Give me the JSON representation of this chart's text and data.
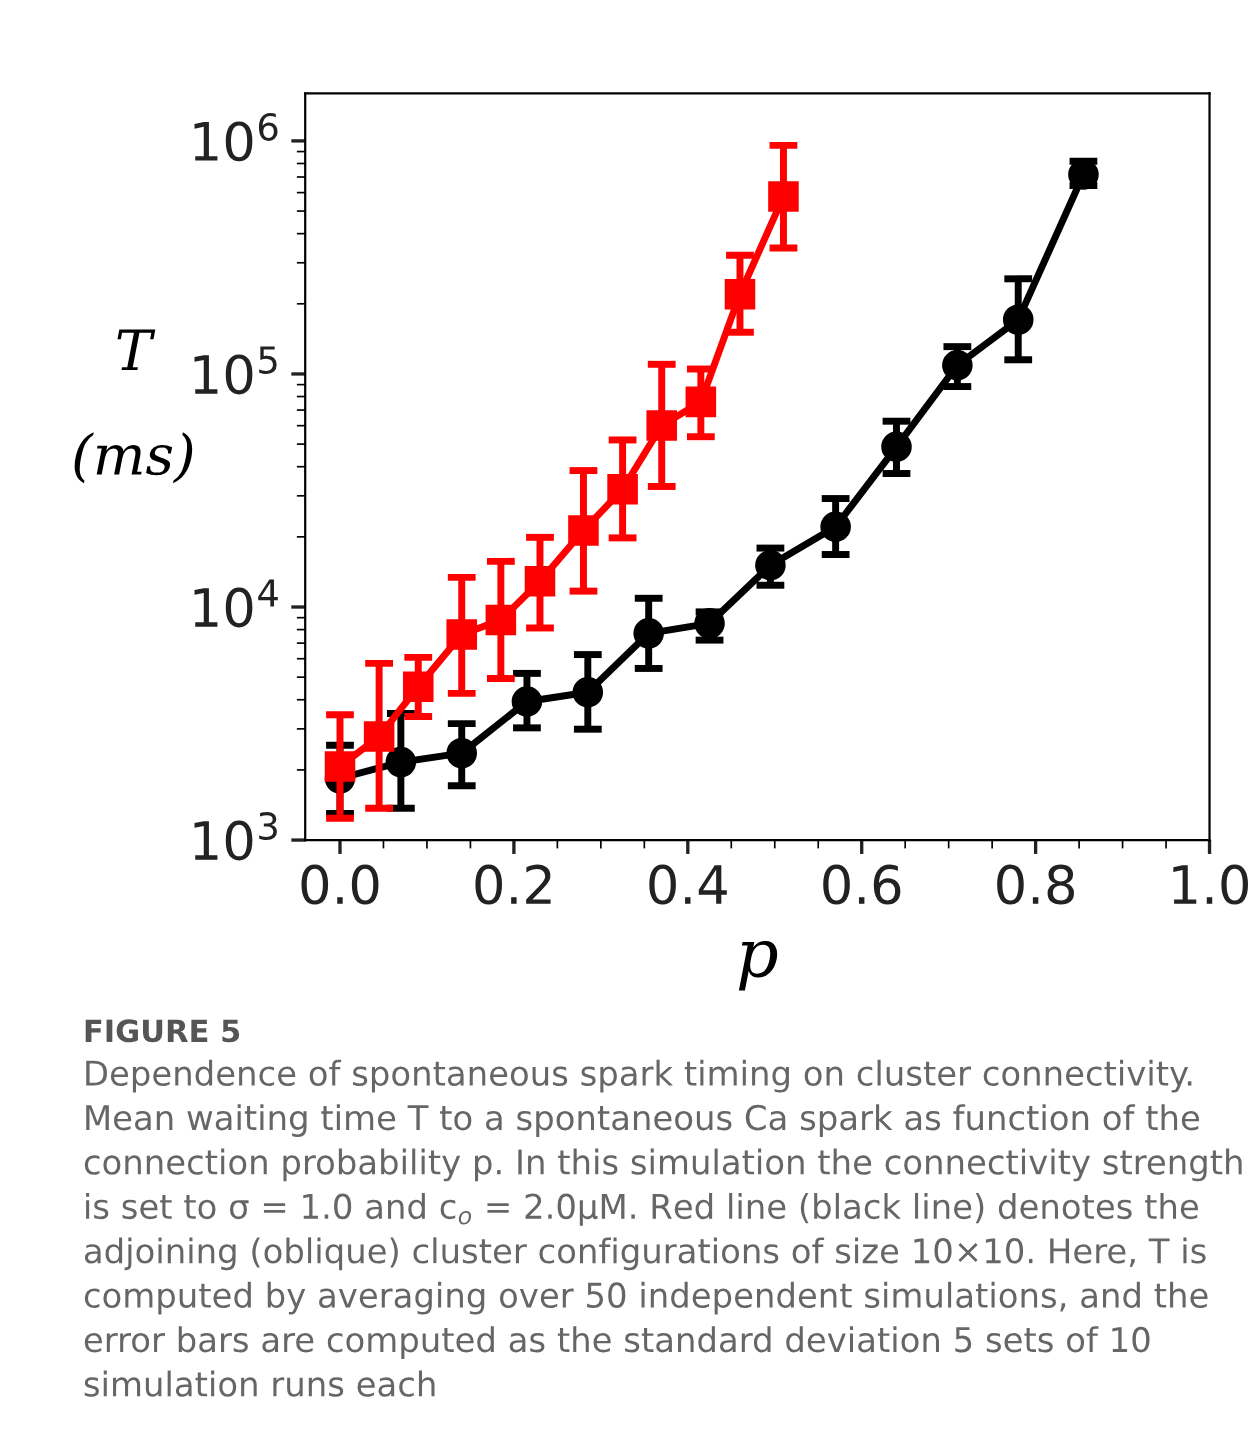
{
  "chart_data": {
    "type": "line",
    "xlabel": "p",
    "ylabel": "T\n(ms)",
    "xlim": [
      -0.04,
      1.0
    ],
    "xticks": [
      {
        "value": 0.0,
        "label": "0.0"
      },
      {
        "value": 0.2,
        "label": "0.2"
      },
      {
        "value": 0.4,
        "label": "0.4"
      },
      {
        "value": 0.6,
        "label": "0.6"
      },
      {
        "value": 0.8,
        "label": "0.8"
      },
      {
        "value": 1.0,
        "label": "1.0"
      }
    ],
    "ylim": [
      1000,
      1600000
    ],
    "log": "y",
    "yticks": [
      {
        "value": 1000,
        "label": "10$^{3}$"
      },
      {
        "value": 10000,
        "label": "10$^{4}$"
      },
      {
        "value": 100000,
        "label": "10$^{5}$"
      },
      {
        "value": 1000000,
        "label": "10$^{6}$"
      }
    ],
    "grid": false,
    "legend": false,
    "line_style": "solid",
    "series": [
      {
        "color": "#ff0000",
        "marker": "square",
        "x": [
          0,
          0.045,
          0.09,
          0.14,
          0.185,
          0.23,
          0.28,
          0.325,
          0.37,
          0.415,
          0.46,
          0.51
        ],
        "values": [
          2070,
          2780,
          4550,
          7620,
          8790,
          12900,
          21300,
          32000,
          60100,
          75900,
          220000,
          577000
        ],
        "errors": [
          [
            1240,
            3450
          ],
          [
            1370,
            5730
          ],
          [
            3390,
            6080
          ],
          [
            4260,
            13400
          ],
          [
            4930,
            15700
          ],
          [
            8130,
            19900
          ],
          [
            11700,
            38500
          ],
          [
            19800,
            52100
          ],
          [
            32900,
            110000
          ],
          [
            53800,
            105000
          ],
          [
            151000,
            323000
          ],
          [
            347000,
            957000
          ]
        ]
      },
      {
        "color": "#000000",
        "marker": "circle",
        "x": [
          0,
          0.07,
          0.14,
          0.215,
          0.285,
          0.355,
          0.425,
          0.495,
          0.57,
          0.64,
          0.71,
          0.78,
          0.855
        ],
        "values": [
          1840,
          2160,
          2360,
          3930,
          4310,
          7710,
          8510,
          15100,
          22100,
          48700,
          109000,
          171000,
          718000
        ],
        "errors": [
          [
            1300,
            2550
          ],
          [
            1370,
            3490
          ],
          [
            1710,
            3160
          ],
          [
            3030,
            5190
          ],
          [
            2990,
            6250
          ],
          [
            5450,
            10900
          ],
          [
            7210,
            9530
          ],
          [
            12400,
            17900
          ],
          [
            16800,
            29200
          ],
          [
            37400,
            62700
          ],
          [
            88300,
            131000
          ],
          [
            115000,
            256000
          ],
          [
            644000,
            818000
          ]
        ]
      }
    ],
    "annotations": [
      "FIGURE 5",
      "Dependence of spontaneous spark timing on cluster connectivity. Mean waiting time T to a spontaneous Ca spark as function of the connection probability p. In this simulation the connectivity strength is set to σ = 1.0 and c$_{o}$ = 2.0μM. Red line (black line) denotes the adjoining (oblique) cluster configurations of size 10×10. Here, T is computed by averaging over 50 independent simulations, and the error bars are computed as the standard deviation 5 sets of 10 simulation runs each"
    ]
  }
}
